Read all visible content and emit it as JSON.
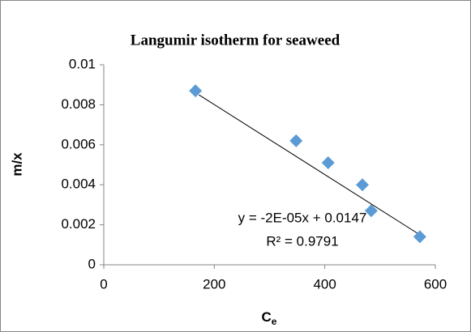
{
  "chart_data": {
    "type": "scatter",
    "title": "Langumir isotherm for seaweed",
    "xlabel": {
      "text": "C",
      "sub": "e"
    },
    "ylabel": "m/x",
    "series": [
      {
        "color": "#5b9bd5",
        "x": [
          166,
          348,
          406,
          468,
          484,
          572
        ],
        "values": [
          0.0087,
          0.0062,
          0.0051,
          0.004,
          0.0027,
          0.0014
        ]
      }
    ],
    "trendline": {
      "color": "#000000",
      "x": [
        172,
        572
      ],
      "values": [
        0.0085,
        0.0015
      ]
    },
    "annotations": [
      "y = -2E-05x + 0.0147",
      "R² = 0.9791"
    ],
    "xlim": [
      0,
      600
    ],
    "xticks": [
      0,
      200,
      400,
      600
    ],
    "ylim": [
      0,
      0.01
    ],
    "yticks": [
      0,
      0.002,
      0.004,
      0.006,
      0.008,
      0.01
    ],
    "grid": false
  }
}
